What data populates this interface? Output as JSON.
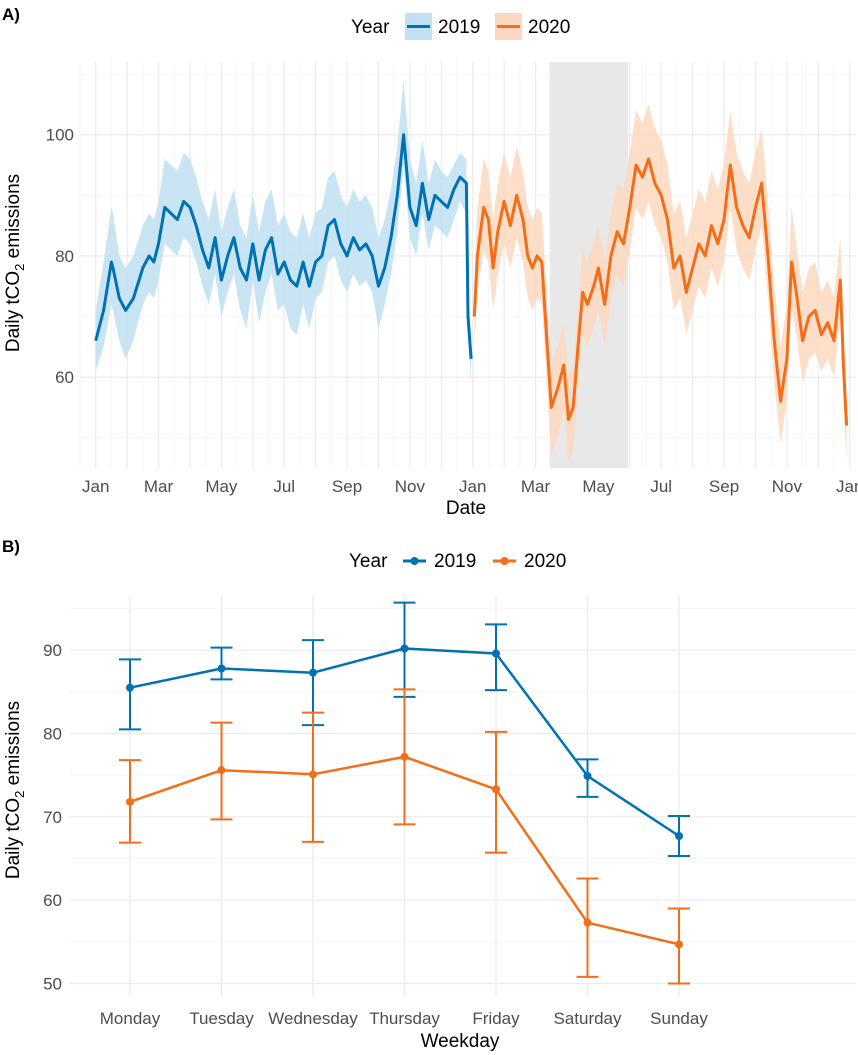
{
  "chart_data": [
    {
      "panel_label": "A)",
      "type": "line",
      "title": "",
      "xlabel": "Date",
      "ylabel_main": "Daily tCO",
      "ylabel_sub": "2",
      "ylabel_tail": " emissions",
      "legend_title": "Year",
      "legend_position": "top",
      "grid": true,
      "ylim": [
        45,
        112
      ],
      "yticks": [
        60,
        80,
        100
      ],
      "x_range_months": [
        -0.5,
        24.2
      ],
      "xticks": [
        {
          "label": "Jan",
          "m": 0
        },
        {
          "label": "Mar",
          "m": 2
        },
        {
          "label": "May",
          "m": 4
        },
        {
          "label": "Jul",
          "m": 6
        },
        {
          "label": "Sep",
          "m": 8
        },
        {
          "label": "Nov",
          "m": 10
        },
        {
          "label": "Jan",
          "m": 12
        },
        {
          "label": "Mar",
          "m": 14
        },
        {
          "label": "May",
          "m": 16
        },
        {
          "label": "Jul",
          "m": 18
        },
        {
          "label": "Sep",
          "m": 20
        },
        {
          "label": "Nov",
          "m": 22
        },
        {
          "label": "Jan",
          "m": 24
        }
      ],
      "shaded_period_months": [
        14.45,
        16.95
      ],
      "series": [
        {
          "name": "2019",
          "color": "#0072B2",
          "band_color": "#BFE1F2",
          "month_offset": 0,
          "x": [
            0.0,
            0.25,
            0.5,
            0.55,
            0.75,
            0.95,
            1.2,
            1.5,
            1.7,
            1.85,
            2.0,
            2.2,
            2.4,
            2.6,
            2.8,
            3.0,
            3.2,
            3.4,
            3.6,
            3.8,
            4.0,
            4.2,
            4.4,
            4.6,
            4.8,
            5.0,
            5.2,
            5.4,
            5.6,
            5.8,
            6.0,
            6.2,
            6.4,
            6.6,
            6.8,
            7.0,
            7.2,
            7.4,
            7.6,
            7.8,
            8.0,
            8.2,
            8.4,
            8.6,
            8.8,
            9.0,
            9.2,
            9.4,
            9.6,
            9.8,
            10.0,
            10.2,
            10.4,
            10.6,
            10.8,
            11.0,
            11.2,
            11.4,
            11.6,
            11.8,
            11.85,
            11.95
          ],
          "values": [
            66,
            71,
            79,
            78,
            73,
            71,
            73,
            78,
            80,
            79,
            82,
            88,
            87,
            86,
            89,
            88,
            85,
            81,
            78,
            83,
            76,
            80,
            83,
            78,
            76,
            82,
            76,
            81,
            83,
            77,
            79,
            76,
            75,
            79,
            75,
            79,
            80,
            85,
            86,
            82,
            80,
            83,
            81,
            82,
            80,
            75,
            78,
            83,
            90,
            100,
            88,
            85,
            92,
            86,
            90,
            89,
            88,
            91,
            93,
            92,
            70,
            63
          ],
          "low_offset": [
            -5,
            -6,
            -7,
            -7,
            -7,
            -8,
            -7,
            -6,
            -6,
            -6,
            -6,
            -6,
            -6,
            -6,
            -6,
            -6,
            -6,
            -6,
            -6,
            -6,
            -6,
            -6,
            -6,
            -7,
            -8,
            -6,
            -7,
            -7,
            -6,
            -6,
            -7,
            -8,
            -8,
            -7,
            -7,
            -6,
            -6,
            -6,
            -6,
            -6,
            -6,
            -6,
            -6,
            -6,
            -6,
            -7,
            -6,
            -6,
            -6,
            -5,
            -5,
            -5,
            -5,
            -5,
            -5,
            -5,
            -5,
            -5,
            -4,
            -5,
            -4,
            -4
          ],
          "high_offset": [
            5,
            8,
            9,
            9,
            7,
            7,
            7,
            7,
            7,
            7,
            7,
            8,
            8,
            8,
            8,
            8,
            8,
            8,
            8,
            8,
            8,
            8,
            8,
            7,
            7,
            8,
            8,
            8,
            8,
            8,
            8,
            8,
            8,
            8,
            8,
            8,
            8,
            8,
            8,
            8,
            8,
            8,
            8,
            8,
            8,
            8,
            8,
            8,
            8,
            9,
            8,
            7,
            7,
            6,
            6,
            5,
            5,
            4,
            4,
            4,
            4,
            4
          ]
        },
        {
          "name": "2020",
          "color": "#F36E1A",
          "band_color": "#FCD8C0",
          "month_offset": 12,
          "x": [
            0.05,
            0.15,
            0.35,
            0.5,
            0.65,
            0.8,
            1.0,
            1.2,
            1.4,
            1.6,
            1.75,
            1.9,
            2.05,
            2.2,
            2.35,
            2.5,
            2.7,
            2.9,
            3.05,
            3.2,
            3.35,
            3.5,
            3.65,
            3.85,
            4.0,
            4.2,
            4.4,
            4.6,
            4.8,
            5.0,
            5.2,
            5.4,
            5.6,
            5.8,
            6.0,
            6.2,
            6.4,
            6.6,
            6.8,
            7.0,
            7.2,
            7.4,
            7.6,
            7.8,
            8.0,
            8.2,
            8.4,
            8.6,
            8.8,
            9.0,
            9.2,
            9.4,
            9.6,
            9.8,
            10.0,
            10.15,
            10.3,
            10.5,
            10.7,
            10.9,
            11.1,
            11.3,
            11.5,
            11.7,
            11.8,
            11.9
          ],
          "values": [
            70,
            80,
            88,
            86,
            78,
            84,
            89,
            85,
            90,
            86,
            80,
            78,
            80,
            79,
            67,
            55,
            58,
            62,
            53,
            55,
            65,
            74,
            72,
            75,
            78,
            72,
            80,
            84,
            82,
            88,
            95,
            93,
            96,
            92,
            90,
            86,
            78,
            80,
            74,
            78,
            82,
            80,
            85,
            82,
            86,
            95,
            88,
            85,
            83,
            88,
            92,
            80,
            66,
            56,
            63,
            79,
            74,
            66,
            70,
            71,
            67,
            69,
            66,
            76,
            62,
            52
          ],
          "low_offset": [
            -5,
            -6,
            -7,
            -7,
            -7,
            -7,
            -7,
            -7,
            -7,
            -7,
            -7,
            -7,
            -7,
            -7,
            -7,
            -8,
            -8,
            -7,
            -7,
            -7,
            -7,
            -7,
            -7,
            -7,
            -7,
            -7,
            -7,
            -7,
            -7,
            -7,
            -7,
            -7,
            -7,
            -7,
            -7,
            -7,
            -7,
            -7,
            -7,
            -7,
            -7,
            -7,
            -7,
            -7,
            -7,
            -7,
            -7,
            -7,
            -7,
            -7,
            -7,
            -7,
            -7,
            -7,
            -7,
            -7,
            -7,
            -7,
            -7,
            -7,
            -6,
            -6,
            -6,
            -6,
            -6,
            -6
          ],
          "high_offset": [
            6,
            8,
            8,
            8,
            8,
            8,
            8,
            8,
            8,
            8,
            8,
            8,
            8,
            8,
            8,
            7,
            7,
            7,
            7,
            7,
            7,
            7,
            7,
            7,
            7,
            7,
            7,
            8,
            9,
            9,
            9,
            9,
            9,
            9,
            9,
            9,
            9,
            9,
            9,
            9,
            9,
            9,
            9,
            9,
            9,
            9,
            9,
            9,
            9,
            9,
            9,
            9,
            9,
            9,
            9,
            9,
            8,
            8,
            8,
            8,
            7,
            7,
            7,
            7,
            7,
            6
          ]
        }
      ]
    },
    {
      "panel_label": "B)",
      "type": "line",
      "title": "",
      "xlabel": "Weekday",
      "ylabel_main": "Daily tCO",
      "ylabel_sub": "2",
      "ylabel_tail": " emissions",
      "legend_title": "Year",
      "legend_position": "top",
      "grid": true,
      "ylim": [
        48.5,
        96.5
      ],
      "yticks": [
        50,
        60,
        70,
        80,
        90
      ],
      "categories": [
        "Monday",
        "Tuesday",
        "Wednesday",
        "Thursday",
        "Friday",
        "Saturday",
        "Sunday"
      ],
      "series": [
        {
          "name": "2019",
          "color": "#0072B2",
          "values": [
            85.5,
            87.8,
            87.3,
            90.2,
            89.6,
            74.9,
            67.7
          ],
          "lower": [
            80.5,
            86.5,
            81.0,
            84.4,
            85.2,
            72.4,
            65.3
          ],
          "upper": [
            88.9,
            90.3,
            91.2,
            95.7,
            93.1,
            76.9,
            70.1
          ]
        },
        {
          "name": "2020",
          "color": "#F36E1A",
          "values": [
            71.8,
            75.6,
            75.1,
            77.2,
            73.3,
            57.3,
            54.7
          ],
          "lower": [
            66.9,
            69.7,
            67.0,
            69.1,
            65.7,
            50.8,
            50.0
          ],
          "upper": [
            76.8,
            81.3,
            82.5,
            85.3,
            80.2,
            62.6,
            59.0
          ]
        }
      ]
    }
  ]
}
